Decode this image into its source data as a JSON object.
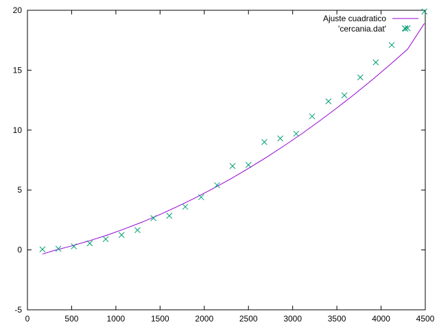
{
  "chart_data": {
    "type": "scatter",
    "title": "",
    "xlabel": "",
    "ylabel": "",
    "xlim": [
      0,
      4500
    ],
    "ylim": [
      -5,
      20
    ],
    "x_ticks": [
      0,
      500,
      1000,
      1500,
      2000,
      2500,
      3000,
      3500,
      4000,
      4500
    ],
    "y_ticks": [
      -5,
      0,
      5,
      10,
      15,
      20
    ],
    "x_tick_labels": [
      "0",
      "500",
      "1000",
      "1500",
      "2000",
      "2500",
      "3000",
      "3500",
      "4000",
      "4500"
    ],
    "y_tick_labels": [
      "-5",
      "0",
      "5",
      "10",
      "15",
      "20"
    ],
    "grid": false,
    "legend_position": "top-right",
    "series": [
      {
        "name": "Ajuste cuadratico",
        "kind": "line",
        "color": "#9400d3",
        "x": [
          170,
          300,
          500,
          700,
          900,
          1100,
          1300,
          1500,
          1700,
          1900,
          2100,
          2300,
          2500,
          2700,
          2900,
          3100,
          3300,
          3500,
          3700,
          3900,
          4100,
          4300,
          4490
        ],
        "y": [
          -0.35,
          -0.05,
          0.33,
          0.76,
          1.23,
          1.76,
          2.33,
          2.96,
          3.63,
          4.35,
          5.12,
          5.93,
          6.8,
          7.71,
          8.67,
          9.68,
          10.74,
          11.85,
          13.0,
          14.2,
          15.45,
          16.75,
          18.9
        ]
      },
      {
        "name": "'cercania.dat'",
        "kind": "points",
        "color": "#009e73",
        "x": [
          170,
          350,
          525,
          705,
          885,
          1065,
          1245,
          1425,
          1605,
          1785,
          1965,
          2145,
          2320,
          2500,
          2680,
          2860,
          3040,
          3220,
          3405,
          3585,
          3765,
          3940,
          4120,
          4270,
          4300,
          4490
        ],
        "y": [
          0.05,
          0.1,
          0.3,
          0.55,
          0.9,
          1.25,
          1.65,
          2.65,
          2.85,
          3.6,
          4.4,
          5.4,
          7.0,
          7.1,
          9.0,
          9.3,
          9.7,
          11.15,
          12.4,
          12.9,
          14.4,
          15.65,
          17.1,
          18.5,
          18.5,
          19.9
        ]
      }
    ]
  }
}
